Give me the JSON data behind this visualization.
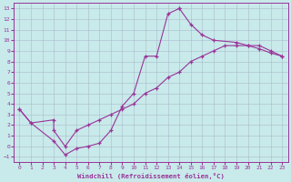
{
  "background_color": "#c8eaea",
  "line_color": "#993399",
  "marker": "+",
  "xlabel": "Windchill (Refroidissement éolien,°C)",
  "xlim": [
    -0.5,
    23.5
  ],
  "ylim": [
    -1.5,
    13.5
  ],
  "xticks": [
    0,
    1,
    2,
    3,
    4,
    5,
    6,
    7,
    8,
    9,
    10,
    11,
    12,
    13,
    14,
    15,
    16,
    17,
    18,
    19,
    20,
    21,
    22,
    23
  ],
  "yticks": [
    -1,
    0,
    1,
    2,
    3,
    4,
    5,
    6,
    7,
    8,
    9,
    10,
    11,
    12,
    13
  ],
  "grid_color": "#aabbcc",
  "line1": [
    [
      0,
      3.5
    ],
    [
      1,
      2.2
    ],
    [
      3,
      2.5
    ],
    [
      3,
      1.5
    ],
    [
      4,
      0.0
    ],
    [
      5,
      1.5
    ],
    [
      6,
      2.0
    ],
    [
      7,
      2.5
    ],
    [
      8,
      3.0
    ],
    [
      9,
      3.5
    ],
    [
      10,
      4.0
    ],
    [
      11,
      5.0
    ],
    [
      12,
      5.5
    ],
    [
      13,
      6.5
    ],
    [
      14,
      7.0
    ],
    [
      15,
      8.0
    ],
    [
      16,
      8.5
    ],
    [
      17,
      9.0
    ],
    [
      18,
      9.5
    ],
    [
      19,
      9.5
    ],
    [
      20,
      9.5
    ],
    [
      21,
      9.5
    ],
    [
      22,
      9.0
    ],
    [
      23,
      8.5
    ]
  ],
  "line2": [
    [
      0,
      3.5
    ],
    [
      1,
      2.2
    ],
    [
      3,
      0.5
    ],
    [
      4,
      -0.8
    ],
    [
      5,
      -0.2
    ],
    [
      6,
      0.0
    ],
    [
      7,
      0.3
    ],
    [
      8,
      1.5
    ],
    [
      9,
      3.8
    ],
    [
      10,
      5.0
    ],
    [
      11,
      8.5
    ],
    [
      12,
      8.5
    ],
    [
      13,
      12.5
    ],
    [
      14,
      13.0
    ]
  ],
  "line3": [
    [
      14,
      13.0
    ],
    [
      15,
      11.5
    ],
    [
      16,
      10.5
    ],
    [
      17,
      10.0
    ],
    [
      19,
      9.8
    ],
    [
      20,
      9.5
    ],
    [
      21,
      9.2
    ],
    [
      22,
      8.8
    ],
    [
      23,
      8.5
    ]
  ]
}
